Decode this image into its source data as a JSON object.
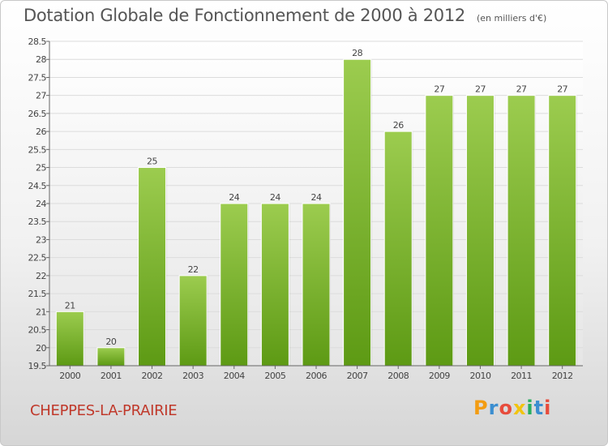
{
  "chart_data": {
    "type": "bar",
    "title": "Dotation Globale de Fonctionnement de 2000 à 2012",
    "subtitle": "(en milliers d'€)",
    "categories": [
      "2000",
      "2001",
      "2002",
      "2003",
      "2004",
      "2005",
      "2006",
      "2007",
      "2008",
      "2009",
      "2010",
      "2011",
      "2012"
    ],
    "values": [
      21,
      20,
      25,
      22,
      24,
      24,
      24,
      28,
      26,
      27,
      27,
      27,
      27
    ],
    "value_labels": [
      "21",
      "20",
      "25",
      "22",
      "24",
      "24",
      "24",
      "28",
      "26",
      "27",
      "27",
      "27",
      "27"
    ],
    "ylim": [
      19.5,
      28.5
    ],
    "yticks": [
      "19.5",
      "20",
      "20.5",
      "21",
      "21.5",
      "22",
      "22.5",
      "23",
      "23.5",
      "24",
      "24.5",
      "25",
      "25.5",
      "26",
      "26.5",
      "27",
      "27.5",
      "28",
      "28.5"
    ],
    "grid": true,
    "bar_color_top": "#9ccc4f",
    "bar_color_bottom": "#5d9a14"
  },
  "footer": {
    "commune": "CHEPPES-LA-PRAIRIE",
    "logo_letters": [
      "P",
      "r",
      "o",
      "x",
      "i",
      "t",
      "i"
    ],
    "logo_colors": [
      "#f39c12",
      "#3b8ed0",
      "#e74c3c",
      "#f1c40f",
      "#27ae60",
      "#3b8ed0",
      "#e74c3c"
    ]
  }
}
